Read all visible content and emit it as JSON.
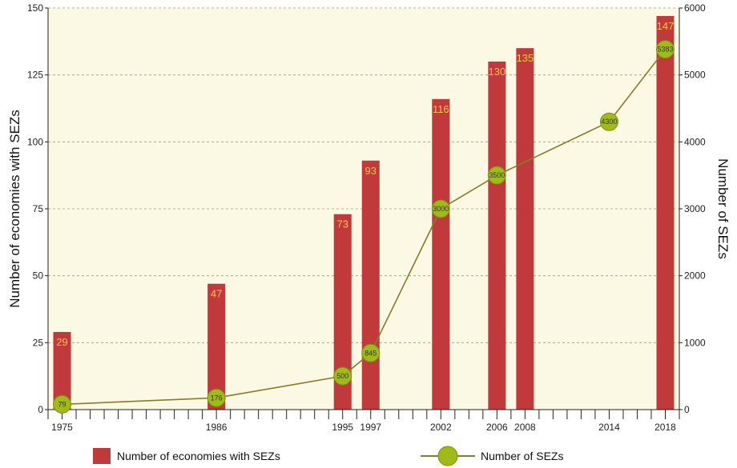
{
  "chart_data": {
    "type": "bar",
    "title": "",
    "categories": [
      1975,
      1986,
      1995,
      1997,
      2002,
      2006,
      2008,
      2014,
      2018
    ],
    "x_range": [
      1974,
      2019
    ],
    "series": [
      {
        "name": "Number of economies with SEZs",
        "kind": "bar",
        "axis": "left",
        "color": "#c0393b",
        "points": [
          {
            "x": 1975,
            "y": 29
          },
          {
            "x": 1986,
            "y": 47
          },
          {
            "x": 1995,
            "y": 73
          },
          {
            "x": 1997,
            "y": 93
          },
          {
            "x": 2002,
            "y": 116
          },
          {
            "x": 2006,
            "y": 130
          },
          {
            "x": 2008,
            "y": 135
          },
          {
            "x": 2018,
            "y": 147
          }
        ]
      },
      {
        "name": "Number of SEZs",
        "kind": "line",
        "axis": "right",
        "color": "#a0ba18",
        "line_color": "#8b7a2a",
        "points": [
          {
            "x": 1975,
            "y": 79
          },
          {
            "x": 1986,
            "y": 176
          },
          {
            "x": 1995,
            "y": 500
          },
          {
            "x": 1997,
            "y": 845
          },
          {
            "x": 2002,
            "y": 3000
          },
          {
            "x": 2006,
            "y": 3500
          },
          {
            "x": 2014,
            "y": 4300
          },
          {
            "x": 2018,
            "y": 5383
          }
        ]
      }
    ],
    "y_left": {
      "label": "Number of economies with SEZs",
      "range": [
        0,
        150
      ],
      "ticks": [
        0,
        25,
        50,
        75,
        100,
        125,
        150
      ]
    },
    "y_right": {
      "label": "Number of SEZs",
      "range": [
        0,
        6000
      ],
      "ticks": [
        0,
        1000,
        2000,
        3000,
        4000,
        5000,
        6000
      ]
    },
    "x_tick_labels": [
      1975,
      1986,
      1995,
      1997,
      2002,
      2006,
      2008,
      2014,
      2018
    ],
    "grid": true,
    "legend_position": "bottom",
    "plot_background": "#fbf9e3"
  }
}
